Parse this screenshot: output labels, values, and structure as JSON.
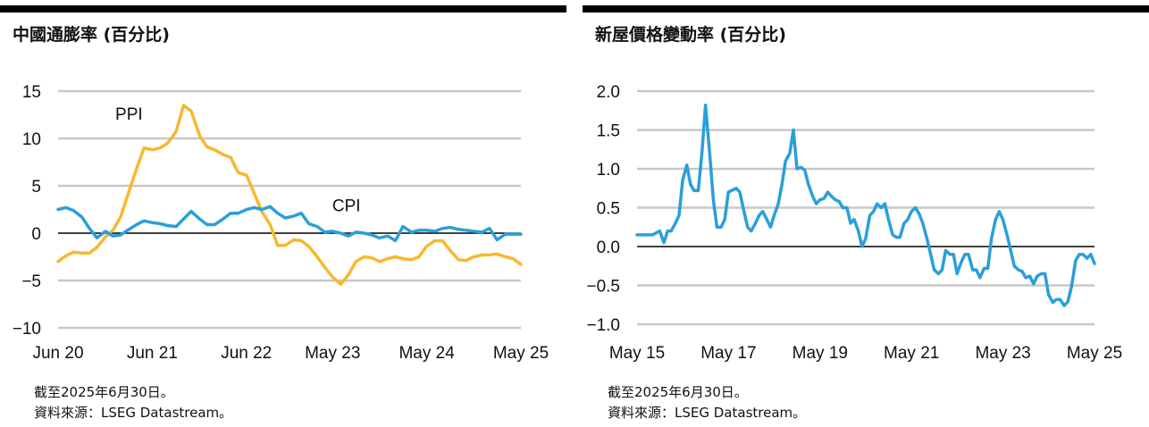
{
  "charts": [
    {
      "title": "中國通膨率 (百分比)",
      "note1": "截至2025年6月30日。",
      "note2": "資料來源：LSEG Datastream。",
      "ylim": [
        -10,
        15
      ],
      "yticks": [
        15,
        10,
        5,
        0,
        -5,
        -10
      ],
      "ytick_labels": [
        "15",
        "10",
        "5",
        "0",
        "−5",
        "−10"
      ],
      "xticks": [
        2020.417,
        2021.417,
        2022.417,
        2023.333,
        2024.333,
        2025.333
      ],
      "xtick_labels": [
        "Jun 20",
        "Jun 21",
        "Jun 22",
        "May 23",
        "May 24",
        "May 25"
      ],
      "xlim": [
        2020.417,
        2025.333
      ]
    },
    {
      "title": "新屋價格變動率 (百分比)",
      "note1": "截至2025年6月30日。",
      "note2": "資料來源：LSEG Datastream。",
      "ylim": [
        -1.0,
        2.0
      ],
      "yticks": [
        2.0,
        1.5,
        1.0,
        0.5,
        0.0,
        -0.5,
        -1.0
      ],
      "ytick_labels": [
        "2.0",
        "1.5",
        "1.0",
        "0.5",
        "0.0",
        "−0.5",
        "−1.0"
      ],
      "xticks": [
        2015.333,
        2017.333,
        2019.333,
        2021.333,
        2023.333,
        2025.333
      ],
      "xtick_labels": [
        "May 15",
        "May 17",
        "May 19",
        "May 21",
        "May 23",
        "May 25"
      ],
      "xlim": [
        2015.333,
        2025.333
      ]
    }
  ],
  "chart_data": [
    {
      "type": "line",
      "title": "中國通膨率 (百分比)",
      "xlabel": "",
      "ylabel": "",
      "ylim": [
        -10,
        15
      ],
      "grid": true,
      "series": [
        {
          "name": "PPI",
          "color": "#F8B82E",
          "label_position": [
            2021.17,
            12.0
          ],
          "points": [
            [
              2020.417,
              -3.0
            ],
            [
              2020.5,
              -2.4
            ],
            [
              2020.58,
              -2.0
            ],
            [
              2020.67,
              -2.1
            ],
            [
              2020.75,
              -2.1
            ],
            [
              2020.83,
              -1.5
            ],
            [
              2020.92,
              -0.4
            ],
            [
              2021.0,
              0.3
            ],
            [
              2021.08,
              1.7
            ],
            [
              2021.17,
              4.4
            ],
            [
              2021.25,
              6.8
            ],
            [
              2021.33,
              9.0
            ],
            [
              2021.42,
              8.8
            ],
            [
              2021.5,
              9.0
            ],
            [
              2021.58,
              9.5
            ],
            [
              2021.67,
              10.7
            ],
            [
              2021.75,
              13.5
            ],
            [
              2021.83,
              12.9
            ],
            [
              2021.92,
              10.3
            ],
            [
              2022.0,
              9.1
            ],
            [
              2022.08,
              8.8
            ],
            [
              2022.17,
              8.3
            ],
            [
              2022.25,
              8.0
            ],
            [
              2022.33,
              6.4
            ],
            [
              2022.42,
              6.1
            ],
            [
              2022.5,
              4.2
            ],
            [
              2022.58,
              2.3
            ],
            [
              2022.67,
              0.9
            ],
            [
              2022.75,
              -1.3
            ],
            [
              2022.83,
              -1.3
            ],
            [
              2022.92,
              -0.7
            ],
            [
              2023.0,
              -0.8
            ],
            [
              2023.08,
              -1.4
            ],
            [
              2023.17,
              -2.5
            ],
            [
              2023.25,
              -3.6
            ],
            [
              2023.33,
              -4.6
            ],
            [
              2023.42,
              -5.4
            ],
            [
              2023.5,
              -4.4
            ],
            [
              2023.58,
              -3.0
            ],
            [
              2023.67,
              -2.5
            ],
            [
              2023.75,
              -2.6
            ],
            [
              2023.83,
              -3.0
            ],
            [
              2023.92,
              -2.7
            ],
            [
              2024.0,
              -2.5
            ],
            [
              2024.08,
              -2.7
            ],
            [
              2024.17,
              -2.8
            ],
            [
              2024.25,
              -2.5
            ],
            [
              2024.33,
              -1.4
            ],
            [
              2024.42,
              -0.8
            ],
            [
              2024.5,
              -0.8
            ],
            [
              2024.58,
              -1.8
            ],
            [
              2024.67,
              -2.8
            ],
            [
              2024.75,
              -2.9
            ],
            [
              2024.83,
              -2.5
            ],
            [
              2024.92,
              -2.3
            ],
            [
              2025.0,
              -2.3
            ],
            [
              2025.08,
              -2.2
            ],
            [
              2025.17,
              -2.5
            ],
            [
              2025.25,
              -2.7
            ],
            [
              2025.333,
              -3.3
            ]
          ]
        },
        {
          "name": "CPI",
          "color": "#2B9FD8",
          "label_position": [
            2023.48,
            2.3
          ],
          "points": [
            [
              2020.417,
              2.5
            ],
            [
              2020.5,
              2.7
            ],
            [
              2020.58,
              2.4
            ],
            [
              2020.67,
              1.7
            ],
            [
              2020.75,
              0.5
            ],
            [
              2020.83,
              -0.5
            ],
            [
              2020.92,
              0.2
            ],
            [
              2021.0,
              -0.3
            ],
            [
              2021.08,
              -0.2
            ],
            [
              2021.17,
              0.4
            ],
            [
              2021.25,
              0.9
            ],
            [
              2021.33,
              1.3
            ],
            [
              2021.42,
              1.1
            ],
            [
              2021.5,
              1.0
            ],
            [
              2021.58,
              0.8
            ],
            [
              2021.67,
              0.7
            ],
            [
              2021.75,
              1.5
            ],
            [
              2021.83,
              2.3
            ],
            [
              2021.92,
              1.5
            ],
            [
              2022.0,
              0.9
            ],
            [
              2022.08,
              0.9
            ],
            [
              2022.17,
              1.5
            ],
            [
              2022.25,
              2.1
            ],
            [
              2022.33,
              2.1
            ],
            [
              2022.42,
              2.5
            ],
            [
              2022.5,
              2.7
            ],
            [
              2022.58,
              2.5
            ],
            [
              2022.67,
              2.8
            ],
            [
              2022.75,
              2.1
            ],
            [
              2022.83,
              1.6
            ],
            [
              2022.92,
              1.8
            ],
            [
              2023.0,
              2.1
            ],
            [
              2023.08,
              1.0
            ],
            [
              2023.17,
              0.7
            ],
            [
              2023.25,
              0.1
            ],
            [
              2023.33,
              0.2
            ],
            [
              2023.42,
              0.0
            ],
            [
              2023.5,
              -0.3
            ],
            [
              2023.58,
              0.1
            ],
            [
              2023.67,
              0.0
            ],
            [
              2023.75,
              -0.2
            ],
            [
              2023.83,
              -0.5
            ],
            [
              2023.92,
              -0.3
            ],
            [
              2024.0,
              -0.8
            ],
            [
              2024.08,
              0.7
            ],
            [
              2024.17,
              0.1
            ],
            [
              2024.25,
              0.3
            ],
            [
              2024.33,
              0.3
            ],
            [
              2024.42,
              0.2
            ],
            [
              2024.5,
              0.5
            ],
            [
              2024.58,
              0.6
            ],
            [
              2024.67,
              0.4
            ],
            [
              2024.75,
              0.3
            ],
            [
              2024.83,
              0.2
            ],
            [
              2024.92,
              0.1
            ],
            [
              2025.0,
              0.5
            ],
            [
              2025.08,
              -0.7
            ],
            [
              2025.17,
              -0.1
            ],
            [
              2025.25,
              -0.1
            ],
            [
              2025.333,
              -0.1
            ]
          ]
        }
      ]
    },
    {
      "type": "line",
      "title": "新屋價格變動率 (百分比)",
      "xlabel": "",
      "ylabel": "",
      "ylim": [
        -1.0,
        2.0
      ],
      "grid": true,
      "series": [
        {
          "name": "",
          "color": "#2B9FD8",
          "points": [
            [
              2015.333,
              0.15
            ],
            [
              2015.5,
              0.15
            ],
            [
              2015.67,
              0.15
            ],
            [
              2015.83,
              0.2
            ],
            [
              2015.92,
              0.05
            ],
            [
              2016.0,
              0.2
            ],
            [
              2016.08,
              0.2
            ],
            [
              2016.17,
              0.3
            ],
            [
              2016.25,
              0.4
            ],
            [
              2016.33,
              0.85
            ],
            [
              2016.42,
              1.05
            ],
            [
              2016.5,
              0.8
            ],
            [
              2016.58,
              0.72
            ],
            [
              2016.67,
              0.72
            ],
            [
              2016.75,
              1.2
            ],
            [
              2016.83,
              1.82
            ],
            [
              2016.92,
              1.2
            ],
            [
              2017.0,
              0.6
            ],
            [
              2017.08,
              0.25
            ],
            [
              2017.17,
              0.25
            ],
            [
              2017.25,
              0.35
            ],
            [
              2017.33,
              0.7
            ],
            [
              2017.5,
              0.75
            ],
            [
              2017.58,
              0.7
            ],
            [
              2017.67,
              0.45
            ],
            [
              2017.75,
              0.25
            ],
            [
              2017.83,
              0.2
            ],
            [
              2017.92,
              0.3
            ],
            [
              2018.0,
              0.4
            ],
            [
              2018.08,
              0.45
            ],
            [
              2018.17,
              0.35
            ],
            [
              2018.25,
              0.25
            ],
            [
              2018.33,
              0.4
            ],
            [
              2018.42,
              0.55
            ],
            [
              2018.5,
              0.8
            ],
            [
              2018.58,
              1.1
            ],
            [
              2018.67,
              1.2
            ],
            [
              2018.75,
              1.5
            ],
            [
              2018.83,
              1.0
            ],
            [
              2018.92,
              1.02
            ],
            [
              2019.0,
              0.98
            ],
            [
              2019.08,
              0.8
            ],
            [
              2019.17,
              0.65
            ],
            [
              2019.25,
              0.55
            ],
            [
              2019.33,
              0.6
            ],
            [
              2019.42,
              0.62
            ],
            [
              2019.5,
              0.7
            ],
            [
              2019.58,
              0.65
            ],
            [
              2019.67,
              0.6
            ],
            [
              2019.75,
              0.58
            ],
            [
              2019.83,
              0.5
            ],
            [
              2019.92,
              0.5
            ],
            [
              2020.0,
              0.3
            ],
            [
              2020.08,
              0.35
            ],
            [
              2020.17,
              0.2
            ],
            [
              2020.25,
              0.0
            ],
            [
              2020.33,
              0.1
            ],
            [
              2020.42,
              0.4
            ],
            [
              2020.5,
              0.45
            ],
            [
              2020.58,
              0.55
            ],
            [
              2020.67,
              0.5
            ],
            [
              2020.75,
              0.55
            ],
            [
              2020.83,
              0.35
            ],
            [
              2020.92,
              0.15
            ],
            [
              2021.0,
              0.12
            ],
            [
              2021.08,
              0.12
            ],
            [
              2021.17,
              0.3
            ],
            [
              2021.25,
              0.35
            ],
            [
              2021.33,
              0.45
            ],
            [
              2021.42,
              0.5
            ],
            [
              2021.5,
              0.42
            ],
            [
              2021.58,
              0.3
            ],
            [
              2021.67,
              0.1
            ],
            [
              2021.75,
              -0.1
            ],
            [
              2021.83,
              -0.3
            ],
            [
              2021.92,
              -0.35
            ],
            [
              2022.0,
              -0.3
            ],
            [
              2022.08,
              -0.05
            ],
            [
              2022.17,
              -0.1
            ],
            [
              2022.25,
              -0.1
            ],
            [
              2022.33,
              -0.35
            ],
            [
              2022.42,
              -0.2
            ],
            [
              2022.5,
              -0.1
            ],
            [
              2022.58,
              -0.1
            ],
            [
              2022.67,
              -0.3
            ],
            [
              2022.75,
              -0.3
            ],
            [
              2022.83,
              -0.4
            ],
            [
              2022.92,
              -0.28
            ],
            [
              2023.0,
              -0.28
            ],
            [
              2023.08,
              0.1
            ],
            [
              2023.17,
              0.35
            ],
            [
              2023.25,
              0.45
            ],
            [
              2023.33,
              0.35
            ],
            [
              2023.42,
              0.15
            ],
            [
              2023.5,
              -0.05
            ],
            [
              2023.58,
              -0.25
            ],
            [
              2023.67,
              -0.3
            ],
            [
              2023.75,
              -0.32
            ],
            [
              2023.83,
              -0.4
            ],
            [
              2023.92,
              -0.38
            ],
            [
              2024.0,
              -0.48
            ],
            [
              2024.08,
              -0.38
            ],
            [
              2024.17,
              -0.35
            ],
            [
              2024.25,
              -0.35
            ],
            [
              2024.33,
              -0.62
            ],
            [
              2024.42,
              -0.72
            ],
            [
              2024.5,
              -0.68
            ],
            [
              2024.58,
              -0.68
            ],
            [
              2024.67,
              -0.76
            ],
            [
              2024.75,
              -0.71
            ],
            [
              2024.83,
              -0.52
            ],
            [
              2024.92,
              -0.18
            ],
            [
              2025.0,
              -0.1
            ],
            [
              2025.08,
              -0.1
            ],
            [
              2025.17,
              -0.15
            ],
            [
              2025.25,
              -0.1
            ],
            [
              2025.333,
              -0.22
            ]
          ]
        }
      ]
    }
  ]
}
